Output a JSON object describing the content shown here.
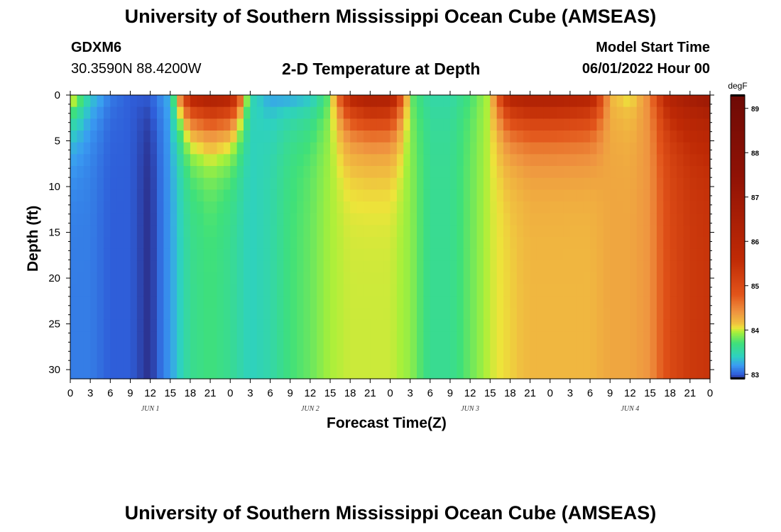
{
  "header": {
    "title": "University of Southern Mississippi Ocean Cube (AMSEAS)",
    "station": "GDXM6",
    "coords": "30.3590N  88.4200W",
    "plot_title": "2-D Temperature at Depth",
    "start_label": "Model Start Time",
    "start_value": "06/01/2022 Hour 00"
  },
  "footer": {
    "title": "University of Southern Mississippi Ocean Cube (AMSEAS)"
  },
  "chart_data": {
    "type": "heatmap",
    "title": "2-D Temperature at Depth",
    "xlabel": "Forecast Time(Z)",
    "ylabel": "Depth (ft)",
    "x_tick_labels": [
      "0",
      "3",
      "6",
      "9",
      "12",
      "15",
      "18",
      "21",
      "0",
      "3",
      "6",
      "9",
      "12",
      "15",
      "18",
      "21",
      "0",
      "3",
      "6",
      "9",
      "12",
      "15",
      "18",
      "21",
      "0",
      "3",
      "6",
      "9",
      "12",
      "15",
      "18",
      "21",
      "0"
    ],
    "day_labels": [
      "JUN 1",
      "JUN 2",
      "JUN 3",
      "JUN 4"
    ],
    "xlim_hours": [
      0,
      96
    ],
    "y_ticks": [
      0,
      5,
      10,
      15,
      20,
      25,
      30
    ],
    "ylim": [
      0,
      31
    ],
    "y_inverted": true,
    "colorbar": {
      "unit": "degF",
      "ticks": [
        83,
        84,
        85,
        86,
        87,
        88,
        89
      ],
      "range": [
        82.9,
        89.3
      ],
      "colors": [
        "#2b2b85",
        "#2f5ed9",
        "#3a9cf2",
        "#2ed1c0",
        "#3fe07a",
        "#a8f03a",
        "#ede43a",
        "#f0c040",
        "#ef9440",
        "#e2541a",
        "#bf2a05",
        "#8f1205",
        "#6e0a05"
      ],
      "color_positions": [
        82.9,
        83.0,
        83.2,
        83.4,
        83.7,
        83.95,
        84.05,
        84.15,
        84.4,
        84.8,
        85.6,
        87.5,
        89.3
      ]
    },
    "profile_hours": [
      0,
      3,
      6,
      9,
      12,
      15,
      18,
      21,
      24,
      27,
      30,
      33,
      36,
      39,
      42,
      45,
      48,
      51,
      54,
      57,
      60,
      63,
      66,
      69,
      72,
      75,
      78,
      81,
      84,
      87,
      90,
      93,
      96
    ],
    "surface_degF": [
      84.3,
      83.4,
      83.1,
      83.0,
      83.0,
      83.3,
      86.0,
      86.6,
      86.3,
      83.5,
      83.2,
      83.2,
      83.3,
      83.8,
      86.0,
      86.6,
      86.5,
      83.8,
      83.5,
      83.5,
      83.7,
      84.0,
      86.2,
      86.5,
      86.5,
      86.4,
      86.2,
      84.2,
      84.0,
      84.5,
      86.2,
      86.8,
      87.2
    ],
    "bottom_degF": [
      83.1,
      83.1,
      83.0,
      83.0,
      82.9,
      83.2,
      83.6,
      83.7,
      83.6,
      83.4,
      83.5,
      83.7,
      83.8,
      83.95,
      84.0,
      84.0,
      84.0,
      83.9,
      83.6,
      83.6,
      83.8,
      84.0,
      84.1,
      84.2,
      84.2,
      84.2,
      84.2,
      84.3,
      84.3,
      84.4,
      85.0,
      85.3,
      85.4
    ]
  }
}
